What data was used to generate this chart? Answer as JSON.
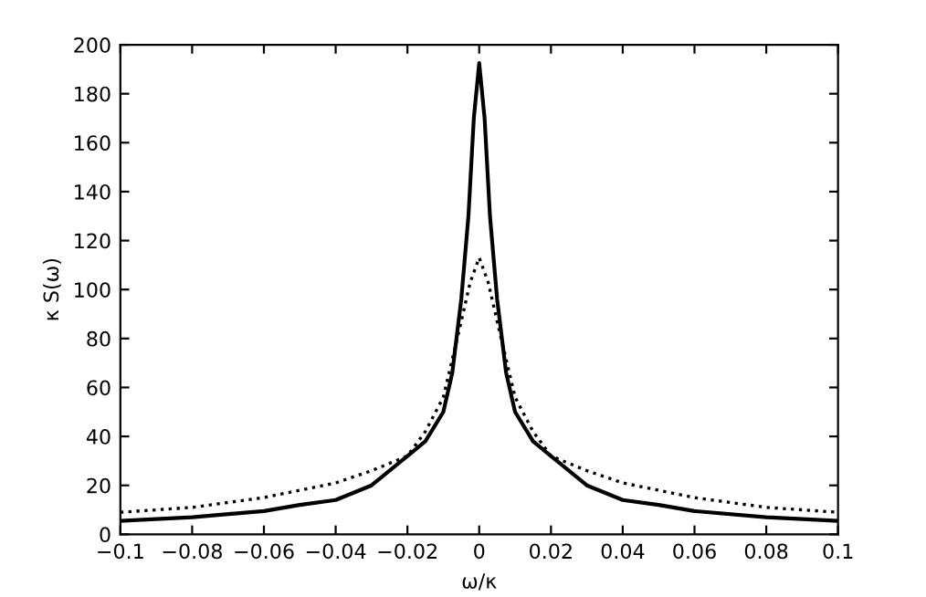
{
  "chart_data": {
    "type": "line",
    "xlabel": "ω/κ",
    "ylabel": "κ S(ω)",
    "xlim": [
      -0.1,
      0.1
    ],
    "xticks": [
      -0.1,
      -0.08,
      -0.06,
      -0.04,
      -0.02,
      0,
      0.02,
      0.04,
      0.06,
      0.08,
      0.1
    ],
    "ylim": [
      0,
      200
    ],
    "yticks": [
      0,
      20,
      40,
      60,
      80,
      100,
      120,
      140,
      160,
      180,
      200
    ],
    "marker": "none",
    "series": [
      {
        "color": "#000000",
        "line_style": "solid",
        "x": [
          -0.1,
          -0.08,
          -0.06,
          -0.05,
          -0.04,
          -0.03,
          -0.02,
          -0.015,
          -0.01,
          -0.0075,
          -0.005,
          -0.003,
          -0.0015,
          0,
          0.0015,
          0.003,
          0.005,
          0.0075,
          0.01,
          0.015,
          0.02,
          0.03,
          0.04,
          0.05,
          0.06,
          0.08,
          0.1
        ],
        "values": [
          5.5,
          7,
          9.5,
          12,
          14,
          20,
          32,
          38,
          50,
          66,
          96,
          130,
          170,
          192.5,
          170,
          130,
          96,
          66,
          50,
          38,
          32,
          20,
          14,
          12,
          9.5,
          7,
          5.5
        ]
      },
      {
        "color": "#000000",
        "line_style": "dotted",
        "x": [
          -0.1,
          -0.08,
          -0.06,
          -0.04,
          -0.03,
          -0.02,
          -0.015,
          -0.01,
          -0.005,
          -0.0025,
          0,
          0.0025,
          0.005,
          0.01,
          0.015,
          0.02,
          0.03,
          0.04,
          0.06,
          0.08,
          0.1
        ],
        "values": [
          9,
          11,
          15,
          21,
          26,
          32,
          42,
          56,
          87,
          103,
          113,
          103,
          87,
          56,
          42,
          32,
          26,
          21,
          15,
          11,
          9
        ]
      }
    ]
  }
}
